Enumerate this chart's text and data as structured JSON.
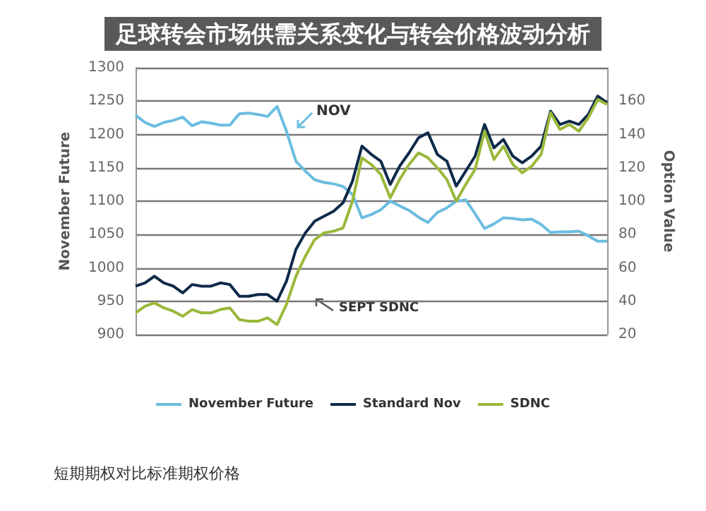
{
  "chart_data": {
    "type": "line",
    "title": "足球转会市场供需关系变化与转会价格波动分析",
    "ylabel": "November Future",
    "y2label": "Option Value",
    "categories": [
      null,
      null,
      null,
      null,
      null,
      null,
      null,
      null,
      null,
      null,
      null,
      null,
      null,
      null,
      null,
      null,
      null,
      null,
      null,
      null,
      null,
      null,
      null,
      null,
      null,
      null,
      null,
      null,
      null,
      null,
      null,
      null,
      null,
      null,
      null,
      null,
      null,
      null,
      null,
      null,
      null,
      null,
      null,
      null,
      null,
      null,
      null,
      null,
      null,
      null,
      null
    ],
    "series": [
      {
        "name": "November Future",
        "color": "#6bbde0",
        "values": [
          1229,
          1218,
          1212,
          1218,
          1221,
          1226,
          1213,
          1219,
          1217,
          1214,
          1214,
          1231,
          1232,
          1230,
          1227,
          1242,
          1205,
          1160,
          1145,
          1132,
          1128,
          1126,
          1122,
          1110,
          1075,
          1080,
          1087,
          1100,
          1093,
          1086,
          1076,
          1068,
          1083,
          1090,
          1100,
          1102,
          1081,
          1059,
          1066,
          1075,
          1074,
          1072,
          1073,
          1065,
          1053,
          1054,
          1054,
          1055,
          1048,
          1040,
          1040
        ]
      },
      {
        "name": "Standard Nov",
        "color": "#0f2a4a",
        "axis": "y2",
        "values": [
          49,
          51,
          55,
          51,
          49,
          45,
          50,
          49,
          49,
          51,
          50,
          43,
          43,
          44,
          44,
          40,
          52,
          71,
          81,
          88,
          91,
          94,
          99,
          112,
          133,
          128,
          124,
          110,
          121,
          129,
          138,
          141,
          128,
          124,
          109,
          118,
          127,
          146,
          132,
          137,
          127,
          123,
          127,
          133,
          154,
          146,
          148,
          146,
          152,
          163,
          159
        ]
      },
      {
        "name": "SDNC",
        "color": "#9ab83a",
        "axis": "y2",
        "values": [
          33,
          37,
          39,
          36,
          34,
          31,
          35,
          33,
          33,
          35,
          36,
          29,
          28,
          28,
          30,
          26,
          38,
          55,
          67,
          77,
          81,
          82,
          84,
          100,
          126,
          122,
          116,
          102,
          113,
          122,
          129,
          126,
          120,
          113,
          100,
          110,
          119,
          142,
          125,
          133,
          122,
          117,
          121,
          128,
          153,
          143,
          146,
          142,
          150,
          161,
          158
        ]
      }
    ],
    "ylim": [
      900,
      1300
    ],
    "yticks": [
      900,
      950,
      1000,
      1050,
      1100,
      1150,
      1200,
      1250,
      1300
    ],
    "y2lim": [
      20,
      180
    ],
    "y2ticks": [
      20,
      40,
      60,
      80,
      100,
      120,
      140,
      160
    ],
    "grid": "y",
    "legend": "bottom",
    "marker": "none",
    "line_style": "solid",
    "annotations": [
      "NOV",
      "SEPT SDNC",
      "短期期权对比标准期权价格"
    ]
  }
}
